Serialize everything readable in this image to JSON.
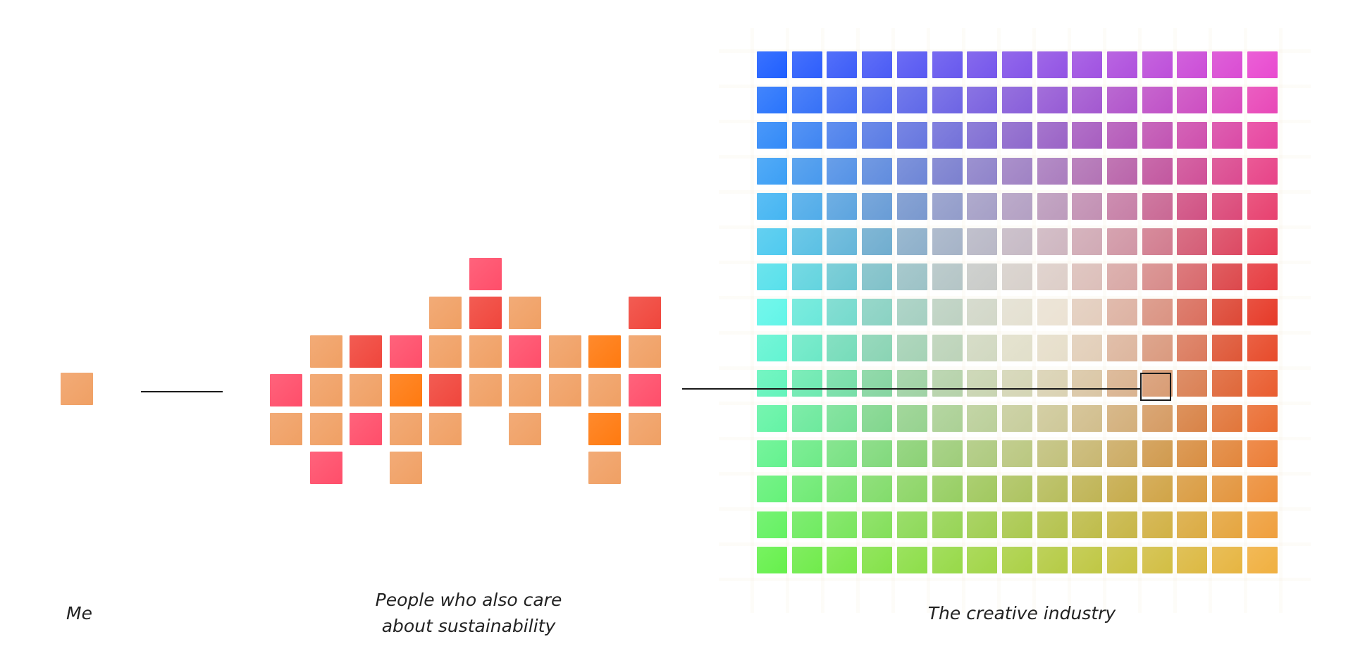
{
  "captions": {
    "me": "Me",
    "people": "People who also care\nabout sustainability",
    "industry": "The creative industry"
  },
  "colors": {
    "peach": "#F0A064",
    "orange": "#FF7A10",
    "red": "#F0463C",
    "pink": "#FF4E6A",
    "line": "#1a1a1a"
  },
  "groups": {
    "me": {
      "tiles": [
        {
          "col": 0,
          "row": 0,
          "color": "peach"
        }
      ]
    },
    "people": {
      "tiles": [
        {
          "col": 5,
          "row": 0,
          "color": "pink"
        },
        {
          "col": 4,
          "row": 1,
          "color": "peach"
        },
        {
          "col": 5,
          "row": 1,
          "color": "red"
        },
        {
          "col": 6,
          "row": 1,
          "color": "peach"
        },
        {
          "col": 9,
          "row": 1,
          "color": "red"
        },
        {
          "col": 1,
          "row": 2,
          "color": "peach"
        },
        {
          "col": 2,
          "row": 2,
          "color": "red"
        },
        {
          "col": 3,
          "row": 2,
          "color": "pink"
        },
        {
          "col": 4,
          "row": 2,
          "color": "peach"
        },
        {
          "col": 5,
          "row": 2,
          "color": "peach"
        },
        {
          "col": 6,
          "row": 2,
          "color": "pink"
        },
        {
          "col": 7,
          "row": 2,
          "color": "peach"
        },
        {
          "col": 8,
          "row": 2,
          "color": "orange"
        },
        {
          "col": 9,
          "row": 2,
          "color": "peach"
        },
        {
          "col": 0,
          "row": 3,
          "color": "pink"
        },
        {
          "col": 1,
          "row": 3,
          "color": "peach"
        },
        {
          "col": 2,
          "row": 3,
          "color": "peach"
        },
        {
          "col": 3,
          "row": 3,
          "color": "orange"
        },
        {
          "col": 4,
          "row": 3,
          "color": "red"
        },
        {
          "col": 5,
          "row": 3,
          "color": "peach"
        },
        {
          "col": 6,
          "row": 3,
          "color": "peach"
        },
        {
          "col": 7,
          "row": 3,
          "color": "peach"
        },
        {
          "col": 8,
          "row": 3,
          "color": "peach"
        },
        {
          "col": 9,
          "row": 3,
          "color": "pink"
        },
        {
          "col": 0,
          "row": 4,
          "color": "peach"
        },
        {
          "col": 1,
          "row": 4,
          "color": "peach"
        },
        {
          "col": 2,
          "row": 4,
          "color": "pink"
        },
        {
          "col": 3,
          "row": 4,
          "color": "peach"
        },
        {
          "col": 4,
          "row": 4,
          "color": "peach"
        },
        {
          "col": 6,
          "row": 4,
          "color": "peach"
        },
        {
          "col": 8,
          "row": 4,
          "color": "orange"
        },
        {
          "col": 9,
          "row": 4,
          "color": "peach"
        },
        {
          "col": 1,
          "row": 5,
          "color": "pink"
        },
        {
          "col": 3,
          "row": 5,
          "color": "peach"
        },
        {
          "col": 8,
          "row": 5,
          "color": "peach"
        }
      ]
    },
    "industry": {
      "cols": 15,
      "rows": 15,
      "highlight": {
        "col": 11,
        "row": 9
      },
      "corner_colors": {
        "top_left": "#1F5FFF",
        "top_right": "#E84AD0",
        "mid_left": "#62F5E8",
        "mid_right": "#E63A28",
        "bottom_left": "#66F04C",
        "bottom_right": "#F0B040",
        "center": "#FFFFF0"
      }
    }
  }
}
